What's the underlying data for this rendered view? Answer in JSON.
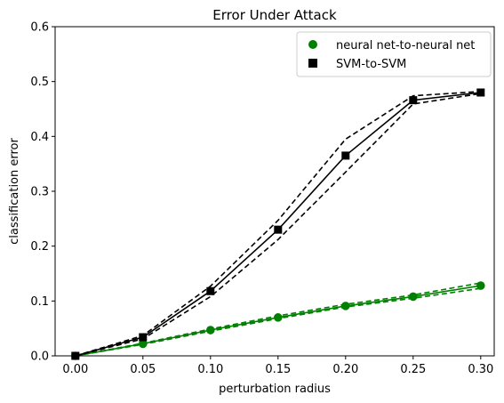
{
  "chart_data": {
    "type": "line",
    "title": "Error Under Attack",
    "xlabel": "perturbation radius",
    "ylabel": "classification error",
    "xlim": [
      -0.015,
      0.31
    ],
    "ylim": [
      0,
      0.6
    ],
    "x_ticks": [
      "0.00",
      "0.05",
      "0.10",
      "0.15",
      "0.20",
      "0.25",
      "0.30"
    ],
    "y_ticks": [
      "0.0",
      "0.1",
      "0.2",
      "0.3",
      "0.4",
      "0.5",
      "0.6"
    ],
    "legend_position": "top-right",
    "grid": false,
    "x": [
      0.0,
      0.05,
      0.1,
      0.15,
      0.2,
      0.25,
      0.3
    ],
    "series": [
      {
        "name": "neural net-to-neural net",
        "marker": "circle",
        "color": "#008000",
        "values": [
          0.0,
          0.022,
          0.047,
          0.07,
          0.091,
          0.108,
          0.128
        ],
        "upper": [
          0.0,
          0.023,
          0.049,
          0.073,
          0.094,
          0.111,
          0.133
        ],
        "lower": [
          0.0,
          0.021,
          0.045,
          0.068,
          0.089,
          0.105,
          0.123
        ]
      },
      {
        "name": "SVM-to-SVM",
        "marker": "square",
        "color": "#000000",
        "values": [
          0.0,
          0.034,
          0.118,
          0.23,
          0.365,
          0.466,
          0.48
        ],
        "upper": [
          0.0,
          0.037,
          0.127,
          0.247,
          0.395,
          0.474,
          0.482
        ],
        "lower": [
          0.0,
          0.031,
          0.108,
          0.212,
          0.335,
          0.459,
          0.478
        ]
      }
    ]
  }
}
